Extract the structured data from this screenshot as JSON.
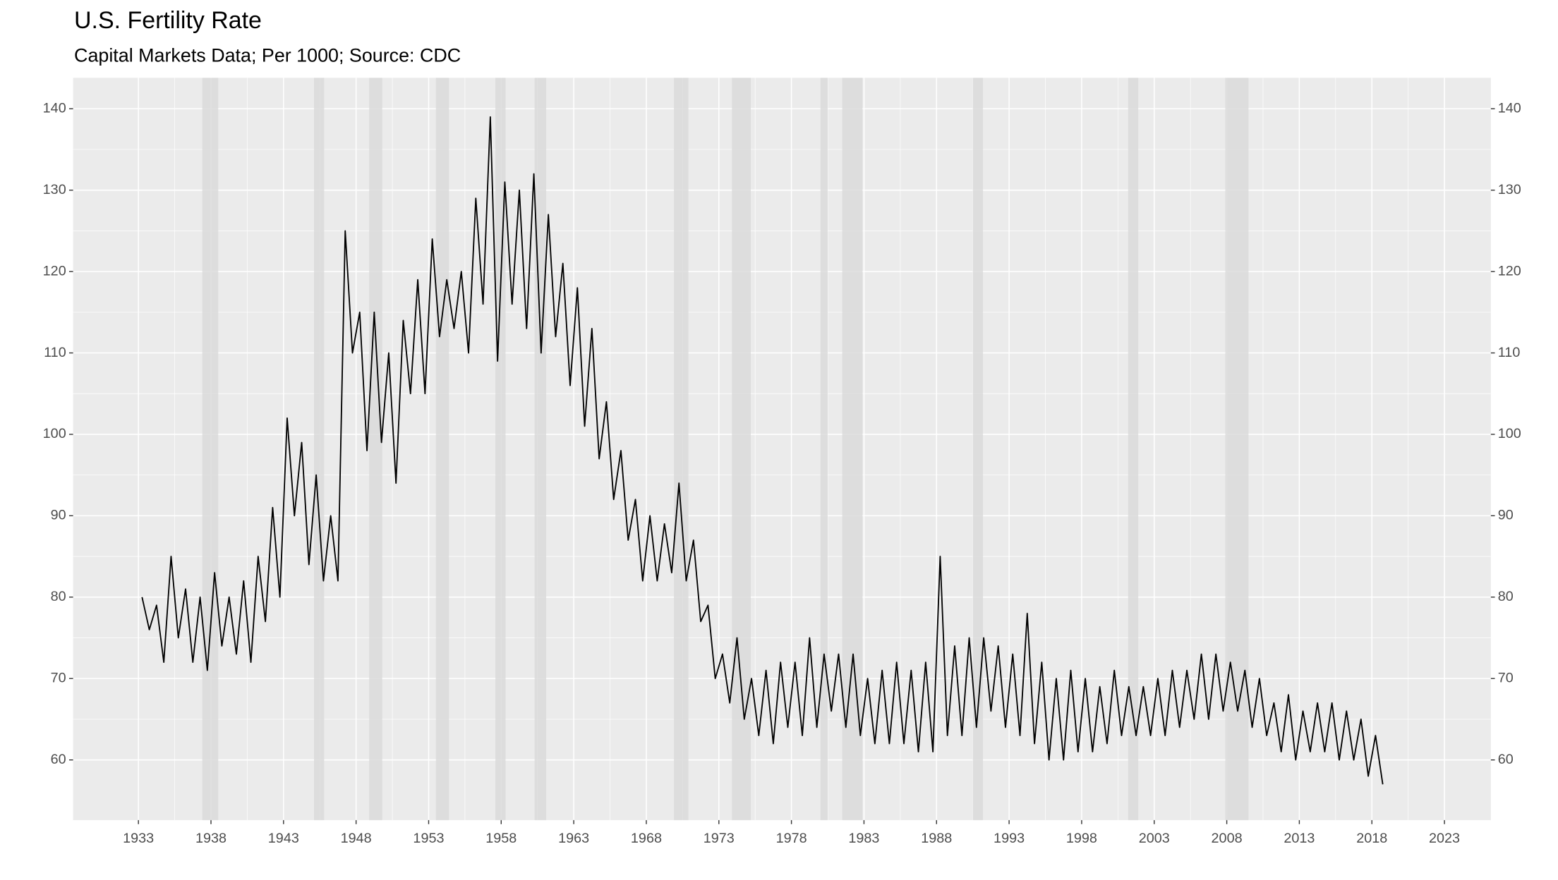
{
  "chart_data": {
    "type": "line",
    "title": "U.S. Fertility Rate",
    "subtitle": "Capital Markets Data; Per 1000; Source: CDC",
    "x": [
      1933.25,
      1933.75,
      1934.25,
      1934.75,
      1935.25,
      1935.75,
      1936.25,
      1936.75,
      1937.25,
      1937.75,
      1938.25,
      1938.75,
      1939.25,
      1939.75,
      1940.25,
      1940.75,
      1941.25,
      1941.75,
      1942.25,
      1942.75,
      1943.25,
      1943.75,
      1944.25,
      1944.75,
      1945.25,
      1945.75,
      1946.25,
      1946.75,
      1947.25,
      1947.75,
      1948.25,
      1948.75,
      1949.25,
      1949.75,
      1950.25,
      1950.75,
      1951.25,
      1951.75,
      1952.25,
      1952.75,
      1953.25,
      1953.75,
      1954.25,
      1954.75,
      1955.25,
      1955.75,
      1956.25,
      1956.75,
      1957.25,
      1957.75,
      1958.25,
      1958.75,
      1959.25,
      1959.75,
      1960.25,
      1960.75,
      1961.25,
      1961.75,
      1962.25,
      1962.75,
      1963.25,
      1963.75,
      1964.25,
      1964.75,
      1965.25,
      1965.75,
      1966.25,
      1966.75,
      1967.25,
      1967.75,
      1968.25,
      1968.75,
      1969.25,
      1969.75,
      1970.25,
      1970.75,
      1971.25,
      1971.75,
      1972.25,
      1972.75,
      1973.25,
      1973.75,
      1974.25,
      1974.75,
      1975.25,
      1975.75,
      1976.25,
      1976.75,
      1977.25,
      1977.75,
      1978.25,
      1978.75,
      1979.25,
      1979.75,
      1980.25,
      1980.75,
      1981.25,
      1981.75,
      1982.25,
      1982.75,
      1983.25,
      1983.75,
      1984.25,
      1984.75,
      1985.25,
      1985.75,
      1986.25,
      1986.75,
      1987.25,
      1987.75,
      1988.25,
      1988.75,
      1989.25,
      1989.75,
      1990.25,
      1990.75,
      1991.25,
      1991.75,
      1992.25,
      1992.75,
      1993.25,
      1993.75,
      1994.25,
      1994.75,
      1995.25,
      1995.75,
      1996.25,
      1996.75,
      1997.25,
      1997.75,
      1998.25,
      1998.75,
      1999.25,
      1999.75,
      2000.25,
      2000.75,
      2001.25,
      2001.75,
      2002.25,
      2002.75,
      2003.25,
      2003.75,
      2004.25,
      2004.75,
      2005.25,
      2005.75,
      2006.25,
      2006.75,
      2007.25,
      2007.75,
      2008.25,
      2008.75,
      2009.25,
      2009.75,
      2010.25,
      2010.75,
      2011.25,
      2011.75,
      2012.25,
      2012.75,
      2013.25,
      2013.75,
      2014.25,
      2014.75,
      2015.25,
      2015.75,
      2016.25,
      2016.75,
      2017.25,
      2017.75,
      2018.25,
      2018.75
    ],
    "values": [
      80,
      76,
      79,
      72,
      85,
      75,
      81,
      72,
      80,
      71,
      83,
      74,
      80,
      73,
      82,
      72,
      85,
      77,
      91,
      80,
      102,
      90,
      99,
      84,
      95,
      82,
      90,
      82,
      125,
      110,
      115,
      98,
      115,
      99,
      110,
      94,
      114,
      105,
      119,
      105,
      124,
      112,
      119,
      113,
      120,
      110,
      129,
      116,
      139,
      109,
      131,
      116,
      130,
      113,
      132,
      110,
      127,
      112,
      121,
      106,
      118,
      101,
      113,
      97,
      104,
      92,
      98,
      87,
      92,
      82,
      90,
      82,
      89,
      83,
      94,
      82,
      87,
      77,
      79,
      70,
      73,
      67,
      75,
      65,
      70,
      63,
      71,
      62,
      72,
      64,
      72,
      63,
      75,
      64,
      73,
      66,
      73,
      64,
      73,
      63,
      70,
      62,
      71,
      62,
      72,
      62,
      71,
      61,
      72,
      61,
      85,
      63,
      74,
      63,
      75,
      64,
      75,
      66,
      74,
      64,
      73,
      63,
      78,
      62,
      72,
      60,
      70,
      60,
      71,
      61,
      70,
      61,
      69,
      62,
      71,
      63,
      69,
      63,
      69,
      63,
      70,
      63,
      71,
      64,
      71,
      65,
      73,
      65,
      73,
      66,
      72,
      66,
      71,
      64,
      70,
      63,
      67,
      61,
      68,
      60,
      66,
      61,
      67,
      61,
      67,
      60,
      66,
      60,
      65,
      58,
      63,
      57
    ],
    "color": "#000000",
    "recessions": [
      [
        1937.4,
        1938.5
      ],
      [
        1945.1,
        1945.8
      ],
      [
        1948.9,
        1949.8
      ],
      [
        1953.5,
        1954.4
      ],
      [
        1957.6,
        1958.3
      ],
      [
        1960.3,
        1961.1
      ],
      [
        1969.9,
        1970.9
      ],
      [
        1973.9,
        1975.2
      ],
      [
        1980.0,
        1980.5
      ],
      [
        1981.5,
        1982.9
      ],
      [
        1990.5,
        1991.2
      ],
      [
        2001.2,
        2001.9
      ],
      [
        2007.9,
        2009.5
      ]
    ],
    "recession_color": "#dadada",
    "xlim": [
      1928.5,
      2026.2
    ],
    "xticks": [
      1933,
      1938,
      1943,
      1948,
      1953,
      1958,
      1963,
      1968,
      1973,
      1978,
      1983,
      1988,
      1993,
      1998,
      2003,
      2008,
      2013,
      2018,
      2023
    ],
    "ylim": [
      52.6,
      143.8
    ],
    "yticks": [
      60,
      70,
      80,
      90,
      100,
      110,
      120,
      130,
      140
    ],
    "y2lim": [
      52.6,
      143.8
    ],
    "y2ticks": [
      60,
      70,
      80,
      90,
      100,
      110,
      120,
      130,
      140
    ],
    "grid": true
  }
}
